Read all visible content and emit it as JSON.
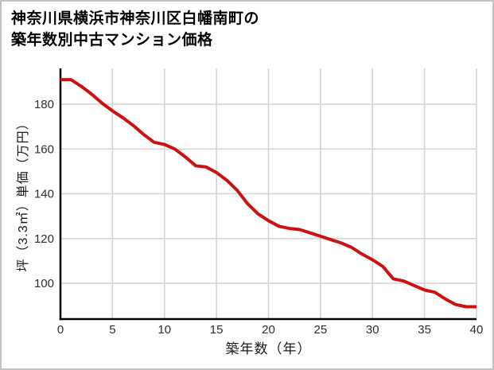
{
  "title": {
    "line1": "神奈川県横浜市神奈川区白幡南町の",
    "line2": "築年数別中古マンション価格"
  },
  "chart_data": {
    "type": "line",
    "title": "神奈川県横浜市神奈川区白幡南町の築年数別中古マンション価格",
    "xlabel": "築年数（年）",
    "ylabel": "坪（3.3㎡）単価（万円）",
    "x": [
      0,
      1,
      2,
      3,
      4,
      5,
      6,
      7,
      8,
      9,
      10,
      11,
      12,
      13,
      14,
      15,
      16,
      17,
      18,
      19,
      20,
      21,
      22,
      23,
      24,
      25,
      26,
      27,
      28,
      29,
      30,
      31,
      32,
      33,
      34,
      35,
      36,
      37,
      38,
      39,
      40
    ],
    "y": [
      191,
      191,
      188,
      184.5,
      180.5,
      177,
      174,
      170.5,
      166.5,
      163,
      162,
      160,
      156.5,
      152.5,
      152,
      149.5,
      146,
      141.5,
      135.5,
      131,
      128,
      125.5,
      124.5,
      124,
      122.5,
      121,
      119.5,
      118,
      116,
      113,
      110.5,
      107.5,
      102,
      101,
      99,
      97,
      96,
      93,
      90.5,
      89.5,
      89.5
    ],
    "xlim": [
      0,
      40
    ],
    "ylim": [
      84,
      196
    ],
    "x_ticks": [
      0,
      5,
      10,
      15,
      20,
      25,
      30,
      35,
      40
    ],
    "y_ticks": [
      100,
      120,
      140,
      160,
      180
    ],
    "grid": true,
    "legend": false,
    "line_color": "#cc1111"
  },
  "colors": {
    "line": "#cc1111",
    "grid": "#d4d4d4",
    "axis": "#000000",
    "tick_text": "#2e2e2e",
    "title_text": "#000000",
    "frame_border": "#c2c2c2",
    "background": "#ffffff"
  }
}
